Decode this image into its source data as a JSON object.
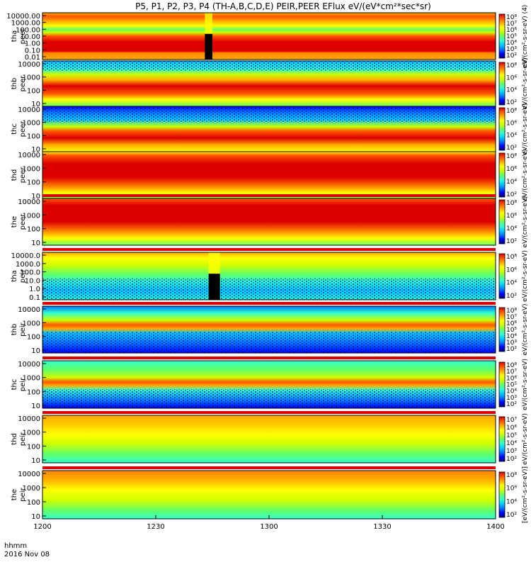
{
  "title": "P5, P1, P2, P3, P4 (TH-A,B,C,D,E) PEIR,PEER EFlux eV/(eV*cm²*sec*sr)",
  "x_axis": {
    "ticks": [
      "1200",
      "1230",
      "1300",
      "1330",
      "1400"
    ],
    "footer_label_1": "hhmm",
    "footer_label_2": "2016 Nov 08"
  },
  "colormap": [
    "#00007f",
    "#0000ff",
    "#0077ff",
    "#00ccff",
    "#33ffcc",
    "#66ff66",
    "#ccff00",
    "#ffff00",
    "#ffaa00",
    "#ff5500",
    "#dd0000"
  ],
  "chart_data": {
    "type": "heatmap",
    "x_unit": "hhmm UT, 2016 Nov 08",
    "x_range": [
      "1200",
      "1400"
    ],
    "y_scale": "log",
    "panels": [
      {
        "id": "tha-peer",
        "ylabel_1": "tha",
        "ylabel_2": "peer",
        "y_ticks": [
          "10000.00",
          "1000.00",
          "100.00",
          "10.00",
          "1.00",
          "0.10",
          "0.01"
        ],
        "cb_ticks": [
          "10⁸",
          "10⁷",
          "10⁶",
          "10⁵",
          "10⁴",
          "10³",
          "10²"
        ],
        "cb_label": "eV/(cm²-s-sr-eV) (4)",
        "gap_hhmm": [
          1243,
          1245
        ],
        "status_bar": false
      },
      {
        "id": "thb-peer",
        "ylabel_1": "thb",
        "ylabel_2": "peer",
        "y_ticks": [
          "10000",
          "1000",
          "100",
          "10"
        ],
        "cb_ticks": [
          "10⁸",
          "10⁶",
          "10⁴",
          "10²"
        ],
        "cb_label": "eV/(cm²-s-sr-eV)",
        "gap_hhmm": null,
        "status_bar": false
      },
      {
        "id": "thc-peer",
        "ylabel_1": "thc",
        "ylabel_2": "peer",
        "y_ticks": [
          "10000",
          "1000",
          "100",
          "10"
        ],
        "cb_ticks": [
          "10⁸",
          "10⁶",
          "10⁴",
          "10²"
        ],
        "cb_label": "eV/(cm²-s-sr-eV)",
        "gap_hhmm": null,
        "status_bar": false
      },
      {
        "id": "thd-peer",
        "ylabel_1": "thd",
        "ylabel_2": "peer",
        "y_ticks": [
          "10000",
          "1000",
          "100",
          "10"
        ],
        "cb_ticks": [
          "10⁸",
          "10⁶",
          "10⁴",
          "10²"
        ],
        "cb_label": "eV/(cm²-s-sr-eV)",
        "gap_hhmm": null,
        "status_bar": false
      },
      {
        "id": "the-peer",
        "ylabel_1": "the",
        "ylabel_2": "peer",
        "y_ticks": [
          "10000",
          "1000",
          "100",
          "10"
        ],
        "cb_ticks": [
          "10⁸",
          "10⁶",
          "10⁴",
          "10²"
        ],
        "cb_label": "eV/(cm²-s-sr-eV)",
        "gap_hhmm": null,
        "status_bar": true
      },
      {
        "id": "tha-peir",
        "ylabel_1": "tha",
        "ylabel_2": "peir",
        "y_ticks": [
          "10000.0",
          "1000.0",
          "100.0",
          "10.0",
          "1.0",
          "0.1"
        ],
        "cb_ticks": [
          "10⁸",
          "10⁶",
          "10⁴",
          "10²"
        ],
        "cb_label": "eV/(cm²-s-sr-eV)",
        "gap_hhmm": [
          1244,
          1247
        ],
        "status_bar": true
      },
      {
        "id": "thb-peir",
        "ylabel_1": "thb",
        "ylabel_2": "peir",
        "y_ticks": [
          "10000",
          "1000",
          "100",
          "10"
        ],
        "cb_ticks": [
          "10⁸",
          "10⁷",
          "10⁶",
          "10⁵",
          "10⁴",
          "10³",
          "10²"
        ],
        "cb_label": "eV/(cm²-s-sr-eV)",
        "gap_hhmm": null,
        "status_bar": true
      },
      {
        "id": "thc-peir",
        "ylabel_1": "thc",
        "ylabel_2": "peir",
        "y_ticks": [
          "10000",
          "1000",
          "100",
          "10"
        ],
        "cb_ticks": [
          "10⁸",
          "10⁷",
          "10⁶",
          "10⁵",
          "10⁴",
          "10³",
          "10²"
        ],
        "cb_label": "eV/(cm²-s-sr-eV)",
        "gap_hhmm": null,
        "status_bar": true
      },
      {
        "id": "thd-peir",
        "ylabel_1": "thd",
        "ylabel_2": "peir",
        "y_ticks": [
          "10000",
          "1000",
          "100",
          "10"
        ],
        "cb_ticks": [
          "10⁷",
          "10⁶",
          "10⁵",
          "10⁴",
          "10³",
          "10²"
        ],
        "cb_label": "eV/(cm²-s-sr-eV)",
        "gap_hhmm": null,
        "status_bar": true
      },
      {
        "id": "the-peir",
        "ylabel_1": "the",
        "ylabel_2": "peir",
        "y_ticks": [
          "10000",
          "1000",
          "100",
          "10"
        ],
        "cb_ticks": [
          "10⁸",
          "10⁶",
          "10⁴",
          "10²"
        ],
        "cb_label": "[eV/(cm²-s-sr-eV)]",
        "gap_hhmm": null,
        "status_bar": true
      }
    ]
  }
}
